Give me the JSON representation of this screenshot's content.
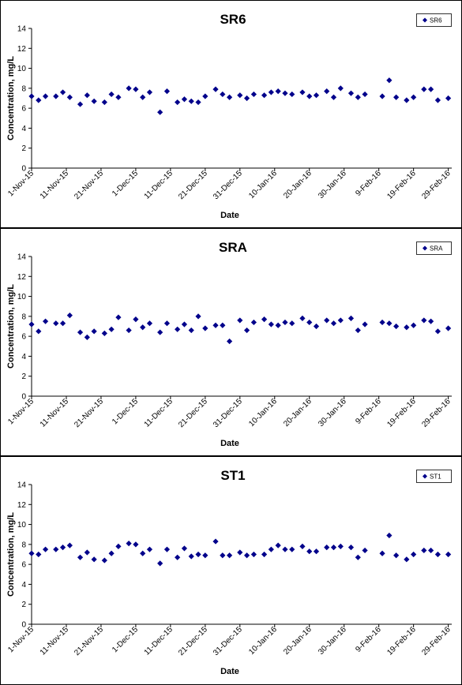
{
  "chart_data": [
    {
      "type": "scatter",
      "title": "SR6",
      "xlabel": "Date",
      "ylabel": "Concentration, mg/L",
      "ylim": [
        0,
        14
      ],
      "yticks": [
        0,
        2,
        4,
        6,
        8,
        10,
        12,
        14
      ],
      "xlim": [
        "2015-11-01",
        "2016-03-01"
      ],
      "xticks": [
        "2015-11-01",
        "2015-11-11",
        "2015-11-21",
        "2015-12-01",
        "2015-12-11",
        "2015-12-21",
        "2015-12-31",
        "2016-01-10",
        "2016-01-20",
        "2016-01-30",
        "2016-02-09",
        "2016-02-19",
        "2016-02-29"
      ],
      "xtick_labels": [
        "1-Nov-15",
        "11-Nov-15",
        "21-Nov-15",
        "1-Dec-15",
        "11-Dec-15",
        "21-Dec-15",
        "31-Dec-15",
        "10-Jan-16",
        "20-Jan-16",
        "30-Jan-16",
        "9-Feb-16",
        "19-Feb-16",
        "29-Feb-16"
      ],
      "grid": false,
      "legend_position": "top-right",
      "marker_color": "#00008b",
      "series": [
        {
          "name": "SR6",
          "x": [
            "2015-11-01",
            "2015-11-03",
            "2015-11-05",
            "2015-11-08",
            "2015-11-10",
            "2015-11-12",
            "2015-11-15",
            "2015-11-17",
            "2015-11-19",
            "2015-11-22",
            "2015-11-24",
            "2015-11-26",
            "2015-11-29",
            "2015-12-01",
            "2015-12-03",
            "2015-12-05",
            "2015-12-08",
            "2015-12-10",
            "2015-12-13",
            "2015-12-15",
            "2015-12-17",
            "2015-12-19",
            "2015-12-21",
            "2015-12-24",
            "2015-12-26",
            "2015-12-28",
            "2015-12-31",
            "2016-01-02",
            "2016-01-04",
            "2016-01-07",
            "2016-01-09",
            "2016-01-11",
            "2016-01-13",
            "2016-01-15",
            "2016-01-18",
            "2016-01-20",
            "2016-01-22",
            "2016-01-25",
            "2016-01-27",
            "2016-01-29",
            "2016-02-01",
            "2016-02-03",
            "2016-02-05",
            "2016-02-10",
            "2016-02-12",
            "2016-02-14",
            "2016-02-17",
            "2016-02-19",
            "2016-02-22",
            "2016-02-24",
            "2016-02-26",
            "2016-02-29"
          ],
          "y": [
            7.2,
            6.8,
            7.2,
            7.2,
            7.6,
            7.1,
            6.4,
            7.3,
            6.7,
            6.6,
            7.4,
            7.1,
            8.0,
            7.9,
            7.1,
            7.6,
            5.6,
            7.7,
            6.6,
            6.9,
            6.7,
            6.6,
            7.2,
            7.9,
            7.4,
            7.1,
            7.3,
            7.0,
            7.4,
            7.3,
            7.6,
            7.7,
            7.5,
            7.4,
            7.6,
            7.2,
            7.3,
            7.7,
            7.1,
            8.0,
            7.5,
            7.1,
            7.4,
            7.2,
            8.8,
            7.1,
            6.8,
            7.1,
            7.9,
            7.9,
            6.8,
            7.0
          ]
        }
      ]
    },
    {
      "type": "scatter",
      "title": "SRA",
      "xlabel": "Date",
      "ylabel": "Concentration, mg/L",
      "ylim": [
        0,
        14
      ],
      "yticks": [
        0,
        2,
        4,
        6,
        8,
        10,
        12,
        14
      ],
      "xlim": [
        "2015-11-01",
        "2016-03-01"
      ],
      "xticks": [
        "2015-11-01",
        "2015-11-11",
        "2015-11-21",
        "2015-12-01",
        "2015-12-11",
        "2015-12-21",
        "2015-12-31",
        "2016-01-10",
        "2016-01-20",
        "2016-01-30",
        "2016-02-09",
        "2016-02-19",
        "2016-02-29"
      ],
      "xtick_labels": [
        "1-Nov-15",
        "11-Nov-15",
        "21-Nov-15",
        "1-Dec-15",
        "11-Dec-15",
        "21-Dec-15",
        "31-Dec-15",
        "10-Jan-16",
        "20-Jan-16",
        "30-Jan-16",
        "9-Feb-16",
        "19-Feb-16",
        "29-Feb-16"
      ],
      "grid": false,
      "legend_position": "top-right",
      "marker_color": "#00008b",
      "series": [
        {
          "name": "SRA",
          "x": [
            "2015-11-01",
            "2015-11-03",
            "2015-11-05",
            "2015-11-08",
            "2015-11-10",
            "2015-11-12",
            "2015-11-15",
            "2015-11-17",
            "2015-11-19",
            "2015-11-22",
            "2015-11-24",
            "2015-11-26",
            "2015-11-29",
            "2015-12-01",
            "2015-12-03",
            "2015-12-05",
            "2015-12-08",
            "2015-12-10",
            "2015-12-13",
            "2015-12-15",
            "2015-12-17",
            "2015-12-19",
            "2015-12-21",
            "2015-12-24",
            "2015-12-26",
            "2015-12-28",
            "2015-12-31",
            "2016-01-02",
            "2016-01-04",
            "2016-01-07",
            "2016-01-09",
            "2016-01-11",
            "2016-01-13",
            "2016-01-15",
            "2016-01-18",
            "2016-01-20",
            "2016-01-22",
            "2016-01-25",
            "2016-01-27",
            "2016-01-29",
            "2016-02-01",
            "2016-02-03",
            "2016-02-05",
            "2016-02-10",
            "2016-02-12",
            "2016-02-14",
            "2016-02-17",
            "2016-02-19",
            "2016-02-22",
            "2016-02-24",
            "2016-02-26",
            "2016-02-29"
          ],
          "y": [
            7.2,
            6.5,
            7.5,
            7.3,
            7.3,
            8.1,
            6.4,
            5.9,
            6.5,
            6.3,
            6.7,
            7.9,
            6.6,
            7.7,
            6.9,
            7.3,
            6.4,
            7.3,
            6.7,
            7.2,
            6.6,
            8.0,
            6.8,
            7.1,
            7.1,
            5.5,
            7.6,
            6.6,
            7.4,
            7.7,
            7.2,
            7.1,
            7.4,
            7.3,
            7.8,
            7.4,
            7.0,
            7.6,
            7.3,
            7.6,
            7.8,
            6.6,
            7.2,
            7.4,
            7.3,
            7.0,
            6.9,
            7.1,
            7.6,
            7.5,
            6.5,
            6.8
          ]
        }
      ]
    },
    {
      "type": "scatter",
      "title": "ST1",
      "xlabel": "Date",
      "ylabel": "Concentration, mg/L",
      "ylim": [
        0,
        14
      ],
      "yticks": [
        0,
        2,
        4,
        6,
        8,
        10,
        12,
        14
      ],
      "xlim": [
        "2015-11-01",
        "2016-03-01"
      ],
      "xticks": [
        "2015-11-01",
        "2015-11-11",
        "2015-11-21",
        "2015-12-01",
        "2015-12-11",
        "2015-12-21",
        "2015-12-31",
        "2016-01-10",
        "2016-01-20",
        "2016-01-30",
        "2016-02-09",
        "2016-02-19",
        "2016-02-29"
      ],
      "xtick_labels": [
        "1-Nov-15",
        "11-Nov-15",
        "21-Nov-15",
        "1-Dec-15",
        "11-Dec-15",
        "21-Dec-15",
        "31-Dec-15",
        "10-Jan-16",
        "20-Jan-16",
        "30-Jan-16",
        "9-Feb-16",
        "19-Feb-16",
        "29-Feb-16"
      ],
      "grid": false,
      "legend_position": "top-right",
      "marker_color": "#00008b",
      "series": [
        {
          "name": "ST1",
          "x": [
            "2015-11-01",
            "2015-11-03",
            "2015-11-05",
            "2015-11-08",
            "2015-11-10",
            "2015-11-12",
            "2015-11-15",
            "2015-11-17",
            "2015-11-19",
            "2015-11-22",
            "2015-11-24",
            "2015-11-26",
            "2015-11-29",
            "2015-12-01",
            "2015-12-03",
            "2015-12-05",
            "2015-12-08",
            "2015-12-10",
            "2015-12-13",
            "2015-12-15",
            "2015-12-17",
            "2015-12-19",
            "2015-12-21",
            "2015-12-24",
            "2015-12-26",
            "2015-12-28",
            "2015-12-31",
            "2016-01-02",
            "2016-01-04",
            "2016-01-07",
            "2016-01-09",
            "2016-01-11",
            "2016-01-13",
            "2016-01-15",
            "2016-01-18",
            "2016-01-20",
            "2016-01-22",
            "2016-01-25",
            "2016-01-27",
            "2016-01-29",
            "2016-02-01",
            "2016-02-03",
            "2016-02-05",
            "2016-02-10",
            "2016-02-12",
            "2016-02-14",
            "2016-02-17",
            "2016-02-19",
            "2016-02-22",
            "2016-02-24",
            "2016-02-26",
            "2016-02-29"
          ],
          "y": [
            7.1,
            7.0,
            7.5,
            7.5,
            7.7,
            7.9,
            6.7,
            7.2,
            6.5,
            6.4,
            7.1,
            7.8,
            8.1,
            8.0,
            7.1,
            7.5,
            6.1,
            7.5,
            6.7,
            7.6,
            6.8,
            7.0,
            6.9,
            8.3,
            6.9,
            6.9,
            7.2,
            6.9,
            7.0,
            7.0,
            7.5,
            7.9,
            7.5,
            7.5,
            7.8,
            7.3,
            7.3,
            7.7,
            7.7,
            7.8,
            7.7,
            6.7,
            7.4,
            7.1,
            8.9,
            6.9,
            6.5,
            7.0,
            7.4,
            7.4,
            7.0,
            7.0
          ]
        }
      ]
    }
  ]
}
